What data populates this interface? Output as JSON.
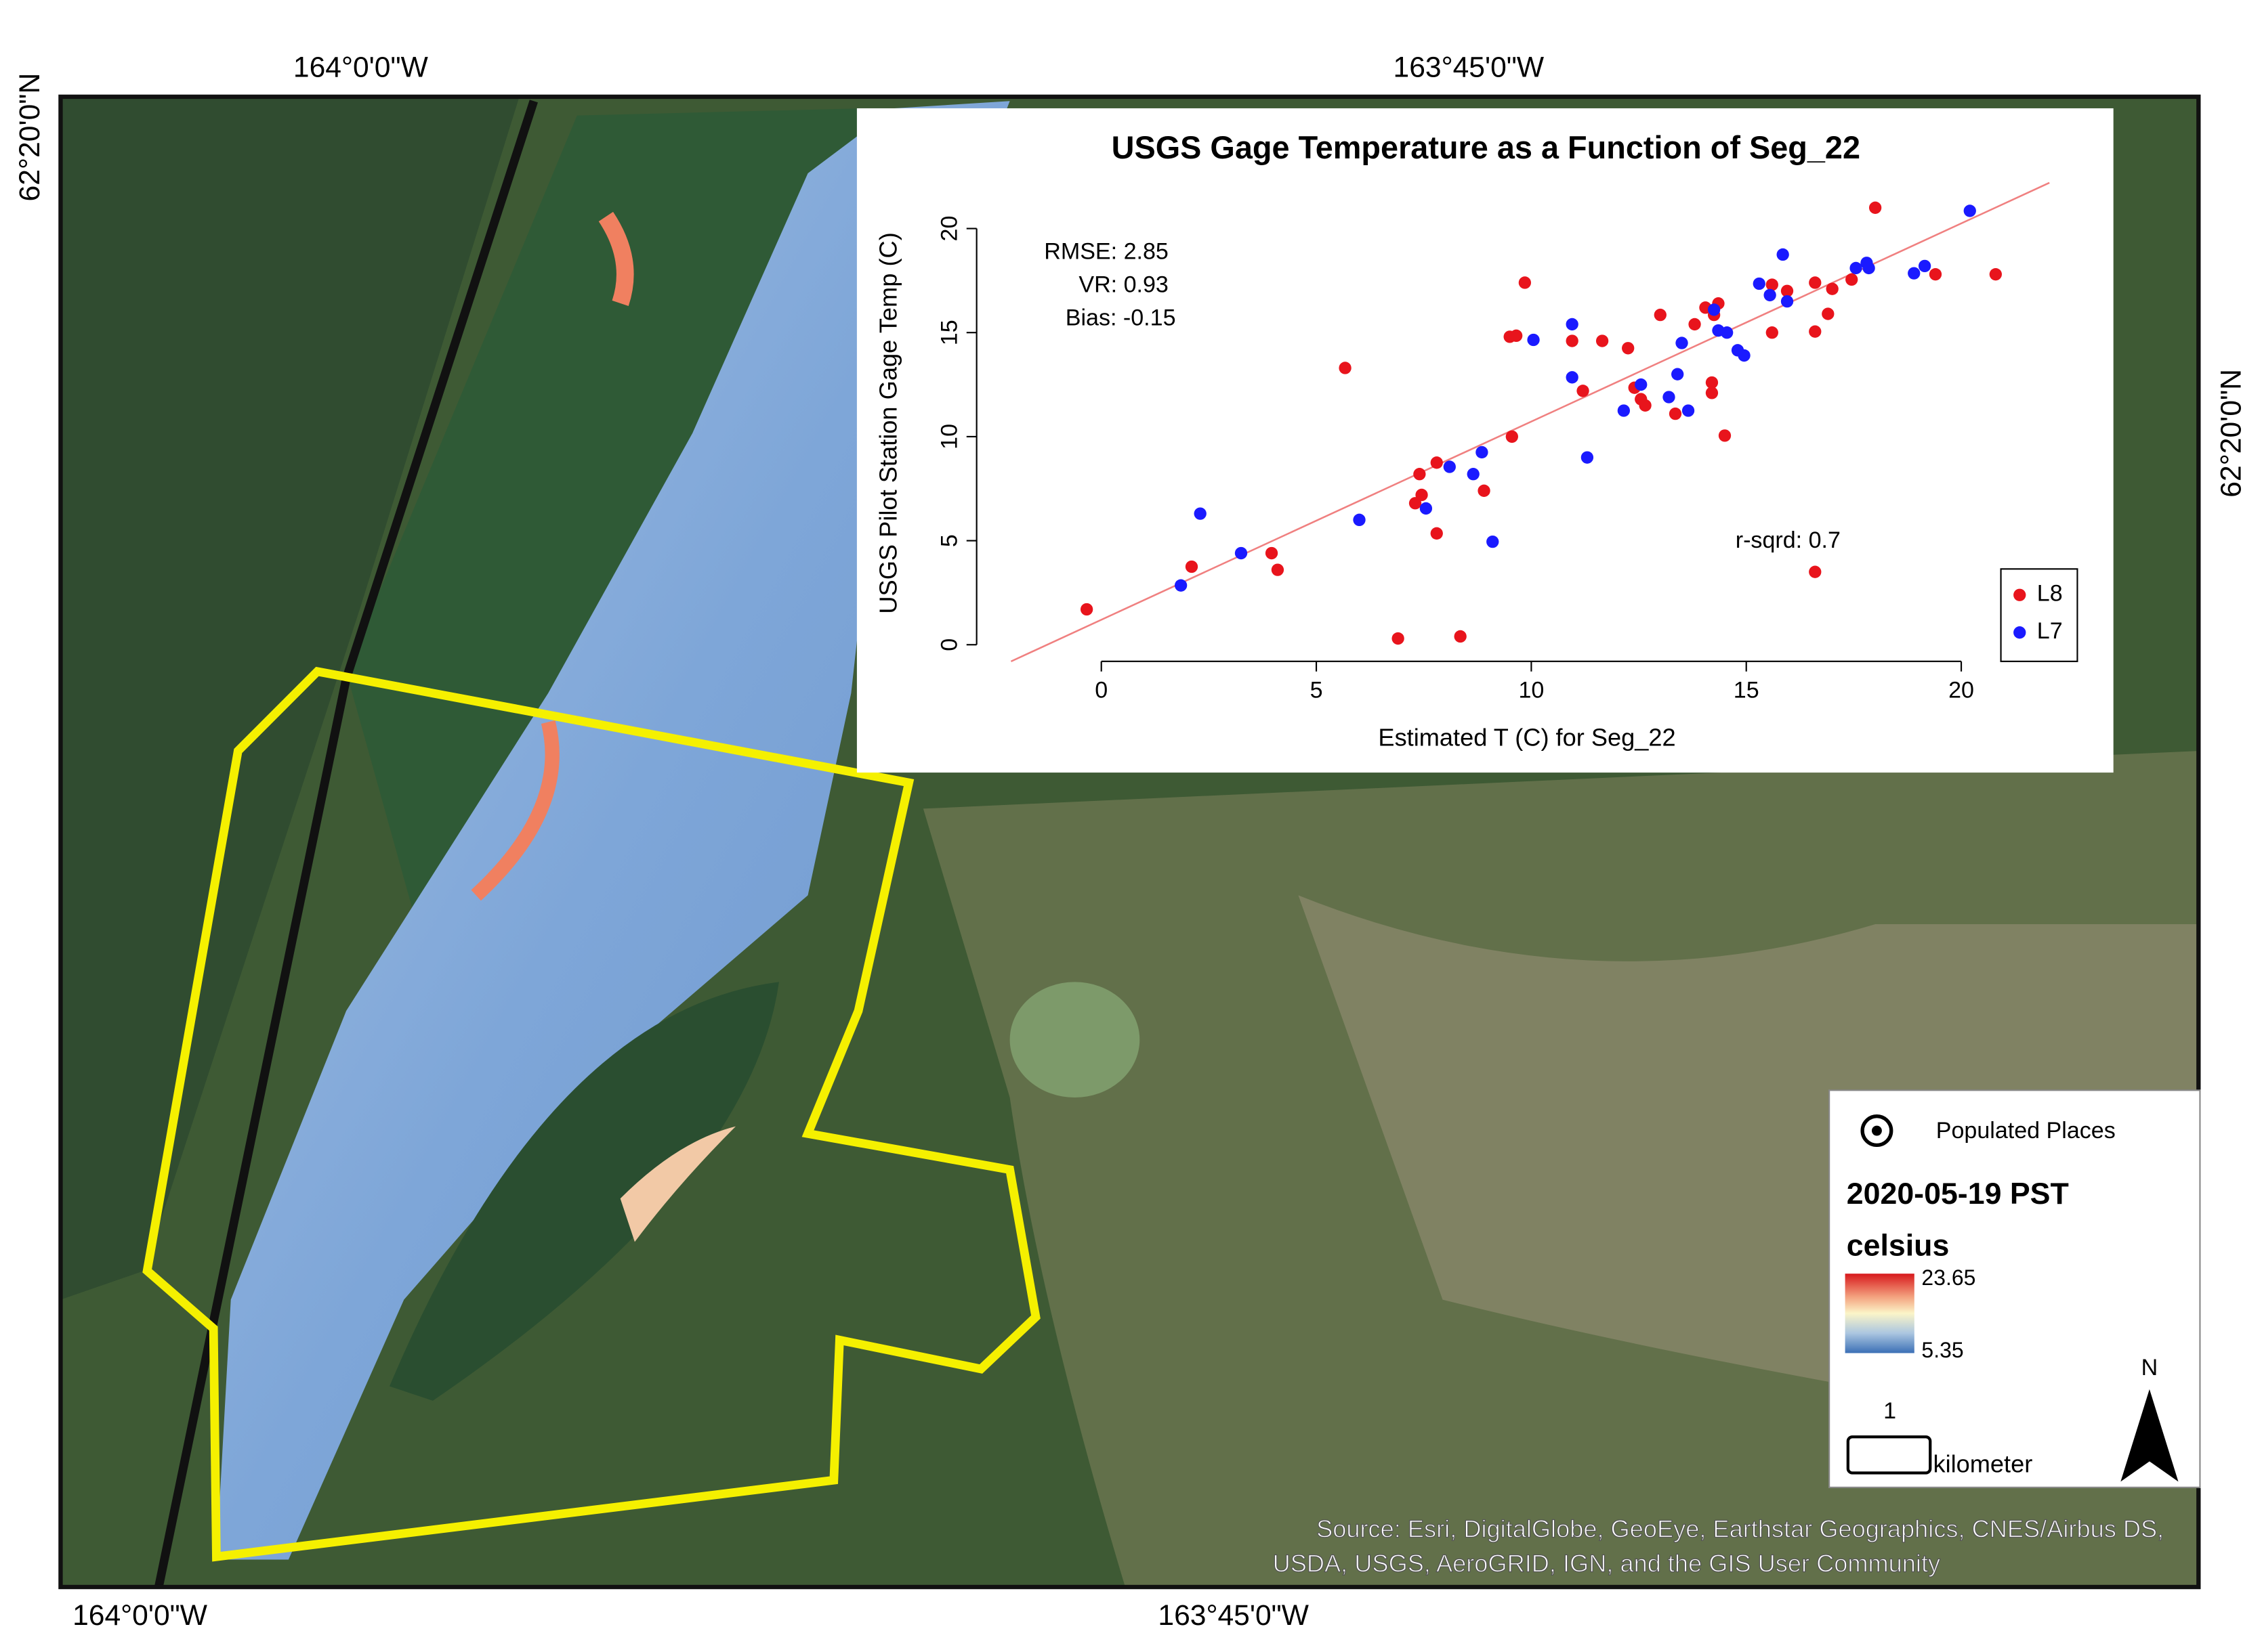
{
  "map": {
    "top_labels": [
      "164°0'0\"W",
      "163°45'0\"W"
    ],
    "bottom_labels": [
      "164°0'0\"W",
      "163°45'0\"W"
    ],
    "left_label": "62°20'0\"N",
    "right_label": "62°20'0\"N",
    "legend": {
      "populated_places": "Populated Places",
      "date": "2020-05-19 PST",
      "unit": "celsius",
      "max": "23.65",
      "min": "5.35",
      "scale_value": "1",
      "scale_unit": "kilometer",
      "north": "N"
    },
    "source": [
      "Source: Esri, DigitalGlobe, GeoEye, Earthstar Geographics, CNES/Airbus DS,",
      "USDA, USGS, AeroGRID, IGN, and the GIS User Community"
    ]
  },
  "chart_data": {
    "type": "scatter",
    "title": "USGS Gage Temperature as a Function of Seg_22",
    "x_label": "Estimated T (C) for Seg_22",
    "y_label": "USGS Pilot Station Gage Temp (C)",
    "xlim": [
      -2.9,
      22.7
    ],
    "ylim": [
      -0.8,
      22.1
    ],
    "xticks": [
      0,
      5,
      10,
      15,
      20
    ],
    "yticks": [
      0,
      5,
      10,
      15,
      20
    ],
    "legend": "bottom right",
    "annotations": [
      "RMSE: 2.85",
      "VR: 0.93",
      "Bias: -0.15",
      "r-sqrd: 0.7"
    ],
    "fit_line": {
      "color": "#f08080",
      "x": [
        -2.1,
        22.05
      ],
      "y": [
        -0.8,
        22.2
      ]
    },
    "series": [
      {
        "name": "L8",
        "color": "#e8141c",
        "x": [
          -0.34,
          2.1,
          3.96,
          4.1,
          5.67,
          6.9,
          8.35,
          7.3,
          7.45,
          7.4,
          7.8,
          7.8,
          8.9,
          9.55,
          9.5,
          9.65,
          9.85,
          10.95,
          11.2,
          11.65,
          12.25,
          12.4,
          12.55,
          12.65,
          13.0,
          13.35,
          13.8,
          14.05,
          14.25,
          14.2,
          14.2,
          14.35,
          14.5,
          15.6,
          15.6,
          15.95,
          16.6,
          16.6,
          16.6,
          16.9,
          17.0,
          17.45,
          18.0,
          19.4,
          20.8
        ],
        "values": [
          1.7,
          3.75,
          4.4,
          3.6,
          13.3,
          0.3,
          0.4,
          6.8,
          7.2,
          8.2,
          8.75,
          5.35,
          7.4,
          10.0,
          14.8,
          14.85,
          17.4,
          14.6,
          12.2,
          14.6,
          14.25,
          12.35,
          11.8,
          11.5,
          15.85,
          11.1,
          15.4,
          16.2,
          15.85,
          12.6,
          12.1,
          16.4,
          10.05,
          17.3,
          15.0,
          17.0,
          3.5,
          17.4,
          15.05,
          15.9,
          17.1,
          17.55,
          21.0,
          17.8,
          17.8
        ]
      },
      {
        "name": "L7",
        "color": "#1a1aff",
        "x": [
          1.85,
          2.3,
          3.25,
          6.0,
          7.55,
          8.1,
          8.65,
          8.85,
          9.1,
          10.05,
          10.95,
          10.95,
          11.3,
          12.15,
          12.55,
          13.2,
          13.4,
          13.5,
          13.65,
          14.25,
          14.35,
          14.55,
          14.8,
          14.95,
          15.3,
          15.55,
          15.85,
          15.95,
          17.55,
          17.8,
          17.85,
          18.9,
          19.15,
          20.2
        ],
        "values": [
          2.85,
          6.3,
          4.4,
          6.0,
          6.55,
          8.55,
          8.2,
          9.25,
          4.95,
          14.65,
          15.4,
          12.85,
          9.0,
          11.25,
          12.5,
          11.9,
          13.0,
          14.5,
          11.25,
          16.1,
          15.1,
          15.0,
          14.15,
          13.9,
          17.35,
          16.8,
          18.75,
          16.5,
          18.1,
          18.35,
          18.1,
          17.85,
          18.2,
          20.85
        ]
      }
    ]
  }
}
